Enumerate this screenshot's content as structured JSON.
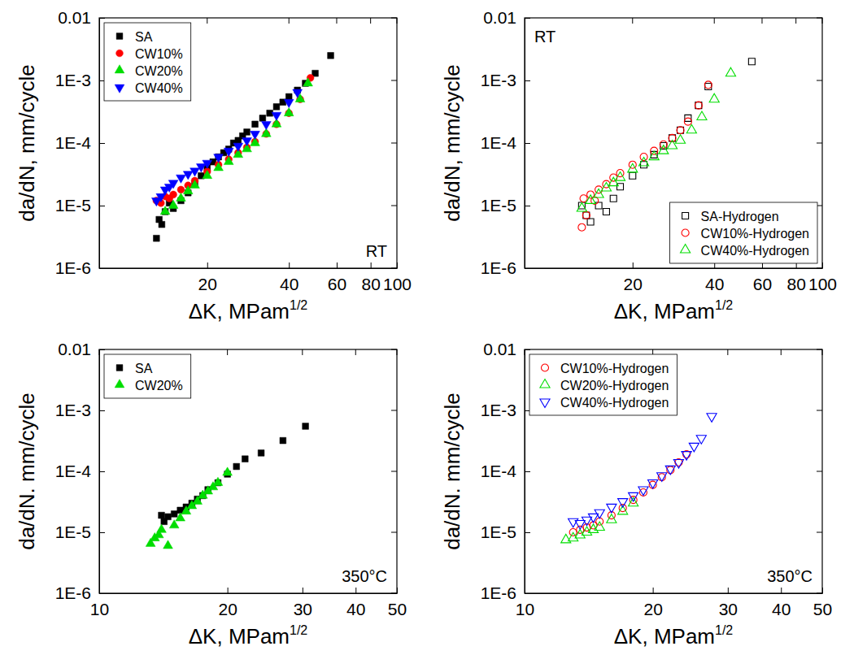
{
  "chart_data": [
    {
      "type": "scatter",
      "log": true,
      "grid": false,
      "legend": "top-left",
      "annotation": "RT",
      "xlabel": "ΔK, MPam",
      "xlabel_sup": "1/2",
      "ylabel": "da/dN, mm/cycle",
      "xlim": [
        8,
        100
      ],
      "xticks": [
        20,
        40,
        60,
        80,
        100
      ],
      "ylim": [
        1e-06,
        0.01
      ],
      "yticks": [
        {
          "value": 1e-06,
          "label": "1E-6"
        },
        {
          "value": 1e-05,
          "label": "1E-5"
        },
        {
          "value": 0.0001,
          "label": "1E-4"
        },
        {
          "value": 0.001,
          "label": "1E-3"
        },
        0.01
      ],
      "series": [
        {
          "name": "SA",
          "color": "#000000",
          "marker": "square",
          "x": [
            13.0,
            13.3,
            13.6,
            14.0,
            14.5,
            15,
            16,
            17,
            18,
            19,
            20,
            21,
            22,
            23,
            24,
            25,
            26,
            27,
            28,
            30,
            32,
            34,
            36,
            38,
            40,
            43,
            46,
            50,
            57
          ],
          "values": [
            3e-06,
            6e-06,
            5e-06,
            8e-06,
            1.1e-05,
            9e-06,
            1.2e-05,
            1.6e-05,
            2.2e-05,
            3e-05,
            4e-05,
            5e-05,
            6e-05,
            7e-05,
            8e-05,
            0.0001,
            0.00011,
            0.00013,
            0.00015,
            0.0002,
            0.00025,
            0.0003,
            0.00038,
            0.00045,
            0.00055,
            0.0007,
            0.0009,
            0.0013,
            0.0025
          ]
        },
        {
          "name": "CW10%",
          "color": "#ff0000",
          "marker": "circle",
          "x": [
            13,
            13.5,
            14,
            14.5,
            15,
            16,
            17,
            18,
            20,
            22,
            24,
            26,
            28,
            30,
            33,
            36,
            40,
            44,
            48
          ],
          "values": [
            1.2e-05,
            1.1e-05,
            1.4e-05,
            1.3e-05,
            1.5e-05,
            1.8e-05,
            2.1e-05,
            2.5e-05,
            3.5e-05,
            4.5e-05,
            5.5e-05,
            7e-05,
            8.5e-05,
            0.000105,
            0.00014,
            0.0002,
            0.0003,
            0.0005,
            0.0011
          ]
        },
        {
          "name": "CW20%",
          "color": "#00dd00",
          "marker": "triangle",
          "x": [
            14,
            15,
            16,
            17,
            18,
            20,
            22,
            24,
            26,
            28,
            30,
            33,
            36,
            40,
            44,
            47
          ],
          "values": [
            8e-06,
            1e-05,
            1.3e-05,
            1.7e-05,
            2.1e-05,
            3e-05,
            4e-05,
            5e-05,
            6.5e-05,
            8e-05,
            0.0001,
            0.00014,
            0.0002,
            0.0003,
            0.0005,
            0.0009
          ]
        },
        {
          "name": "CW40%",
          "color": "#0000ff",
          "marker": "triangle-down",
          "x": [
            13,
            13.5,
            14,
            14.5,
            15,
            16,
            17,
            18,
            19,
            20,
            22,
            24,
            26,
            28,
            30,
            33,
            36,
            40,
            43
          ],
          "values": [
            1.2e-05,
            1.4e-05,
            1.8e-05,
            2e-05,
            2.3e-05,
            2.8e-05,
            3.2e-05,
            3.6e-05,
            4.2e-05,
            4.8e-05,
            6e-05,
            7.5e-05,
            9e-05,
            0.00011,
            0.00014,
            0.0002,
            0.00028,
            0.00045,
            0.00065
          ]
        }
      ]
    },
    {
      "type": "scatter",
      "log": true,
      "grid": false,
      "legend": "bottom-right",
      "annotation": "RT",
      "xlabel": "ΔK, MPam",
      "xlabel_sup": "1/2",
      "ylabel": "da/dN, mm/cycle",
      "xlim": [
        8,
        100
      ],
      "xticks": [
        20,
        40,
        60,
        80,
        100
      ],
      "ylim": [
        1e-06,
        0.01
      ],
      "yticks": [
        {
          "value": 1e-06,
          "label": "1E-6"
        },
        {
          "value": 1e-05,
          "label": "1E-5"
        },
        {
          "value": 0.0001,
          "label": "1E-4"
        },
        {
          "value": 0.001,
          "label": "1E-3"
        },
        0.01
      ],
      "series": [
        {
          "name": "SA-Hydrogen",
          "color": "#000000",
          "marker": "square-open",
          "x": [
            13,
            13.5,
            14,
            15,
            16,
            17,
            18,
            20,
            22,
            24,
            26,
            28,
            30,
            32,
            35,
            38,
            55
          ],
          "values": [
            1e-05,
            7e-06,
            5.5e-06,
            1e-05,
            8e-06,
            1.3e-05,
            2e-05,
            3e-05,
            4.5e-05,
            6.5e-05,
            9e-05,
            0.00012,
            0.00016,
            0.00025,
            0.0004,
            0.0008,
            0.002
          ]
        },
        {
          "name": "CW10%-Hydrogen",
          "color": "#ff0000",
          "marker": "circle-open",
          "x": [
            13,
            13.2,
            13.5,
            14,
            14.5,
            15,
            16,
            17,
            18,
            20,
            22,
            24,
            26,
            28,
            30,
            32,
            35,
            38
          ],
          "values": [
            4.5e-06,
            1.3e-05,
            7e-06,
            1.5e-05,
            1.2e-05,
            1.8e-05,
            2.2e-05,
            2.8e-05,
            3.3e-05,
            4.5e-05,
            6e-05,
            7.5e-05,
            9.5e-05,
            0.00012,
            0.00016,
            0.00022,
            0.0004,
            0.00085
          ]
        },
        {
          "name": "CW40%-Hydrogen",
          "color": "#00dd00",
          "marker": "triangle-open",
          "x": [
            13,
            14,
            15,
            16,
            17,
            18,
            20,
            22,
            24,
            26,
            28,
            30,
            33,
            36,
            40,
            46
          ],
          "values": [
            9e-06,
            1.2e-05,
            1.5e-05,
            1.9e-05,
            2.3e-05,
            2.8e-05,
            3.8e-05,
            4.8e-05,
            6e-05,
            7.5e-05,
            9e-05,
            0.00011,
            0.00016,
            0.00026,
            0.0005,
            0.0013
          ]
        }
      ]
    },
    {
      "type": "scatter",
      "log": true,
      "grid": false,
      "legend": "top-left",
      "annotation": "350°C",
      "xlabel": "ΔK, MPam",
      "xlabel_sup": "1/2",
      "ylabel": "da/dN. mm/cycle",
      "xlim": [
        10,
        50
      ],
      "xticks": [
        10,
        20,
        30,
        40,
        50
      ],
      "ylim": [
        1e-06,
        0.01
      ],
      "yticks": [
        {
          "value": 1e-06,
          "label": "1E-6"
        },
        {
          "value": 1e-05,
          "label": "1E-5"
        },
        {
          "value": 0.0001,
          "label": "1E-4"
        },
        {
          "value": 0.001,
          "label": "1E-3"
        },
        0.01
      ],
      "series": [
        {
          "name": "SA",
          "color": "#000000",
          "marker": "square",
          "x": [
            14,
            14.2,
            14.5,
            15,
            15.5,
            16,
            16.5,
            17,
            17.5,
            18,
            19,
            20,
            21,
            22,
            24,
            27,
            30.5
          ],
          "values": [
            1.9e-05,
            1.5e-05,
            1.8e-05,
            2e-05,
            2.3e-05,
            2.6e-05,
            3e-05,
            3.5e-05,
            4e-05,
            5e-05,
            6.5e-05,
            9e-05,
            0.00012,
            0.00016,
            0.0002,
            0.00032,
            0.00055
          ]
        },
        {
          "name": "CW20%",
          "color": "#00dd00",
          "marker": "triangle",
          "x": [
            13.2,
            13.5,
            13.8,
            14,
            14.5,
            15,
            15.5,
            16,
            16.5,
            17,
            17.5,
            18,
            18.5,
            19,
            20
          ],
          "values": [
            6.5e-06,
            8e-06,
            9e-06,
            1.1e-05,
            6e-06,
            1.3e-05,
            1.7e-05,
            2.2e-05,
            2.7e-05,
            3.2e-05,
            4e-05,
            4.7e-05,
            5.5e-05,
            6.5e-05,
            9.5e-05
          ]
        }
      ]
    },
    {
      "type": "scatter",
      "log": true,
      "grid": false,
      "legend": "top-left",
      "annotation": "350°C",
      "xlabel": "ΔK, MPam",
      "xlabel_sup": "1/2",
      "ylabel": "da/dN. mm/cycle",
      "xlim": [
        10,
        50
      ],
      "xticks": [
        10,
        20,
        30,
        40,
        50
      ],
      "ylim": [
        1e-06,
        0.01
      ],
      "yticks": [
        {
          "value": 1e-06,
          "label": "1E-6"
        },
        {
          "value": 1e-05,
          "label": "1E-5"
        },
        {
          "value": 0.0001,
          "label": "1E-4"
        },
        {
          "value": 0.001,
          "label": "1E-3"
        },
        0.01
      ],
      "series": [
        {
          "name": "CW10%-Hydrogen",
          "color": "#ff0000",
          "marker": "circle-open",
          "x": [
            13,
            13.5,
            14,
            14.5,
            15,
            16,
            17,
            18,
            19,
            20,
            21,
            22,
            23,
            24
          ],
          "values": [
            1e-05,
            1.1e-05,
            1.2e-05,
            1.3e-05,
            1.5e-05,
            1.9e-05,
            2.5e-05,
            3.4e-05,
            4.5e-05,
            6e-05,
            8e-05,
            0.000105,
            0.00014,
            0.00019
          ]
        },
        {
          "name": "CW20%-Hydrogen",
          "color": "#00dd00",
          "marker": "triangle-open",
          "x": [
            12.5,
            13,
            13.5,
            14,
            14.5,
            15,
            16,
            17,
            18
          ],
          "values": [
            7.5e-06,
            8e-06,
            9e-06,
            1e-05,
            1.1e-05,
            1.2e-05,
            1.6e-05,
            2.2e-05,
            3e-05
          ]
        },
        {
          "name": "CW40%-Hydrogen",
          "color": "#0000ff",
          "marker": "triangle-down-open",
          "x": [
            13,
            13.5,
            14,
            14.5,
            15,
            16,
            17,
            18,
            19,
            20,
            21,
            22,
            23,
            24,
            25,
            26,
            27.5
          ],
          "values": [
            1.5e-05,
            1.4e-05,
            1.6e-05,
            1.8e-05,
            2.1e-05,
            2.6e-05,
            3.2e-05,
            4e-05,
            5e-05,
            6.5e-05,
            8.5e-05,
            0.00011,
            0.00014,
            0.00019,
            0.00026,
            0.00035,
            0.0008
          ]
        }
      ]
    }
  ]
}
